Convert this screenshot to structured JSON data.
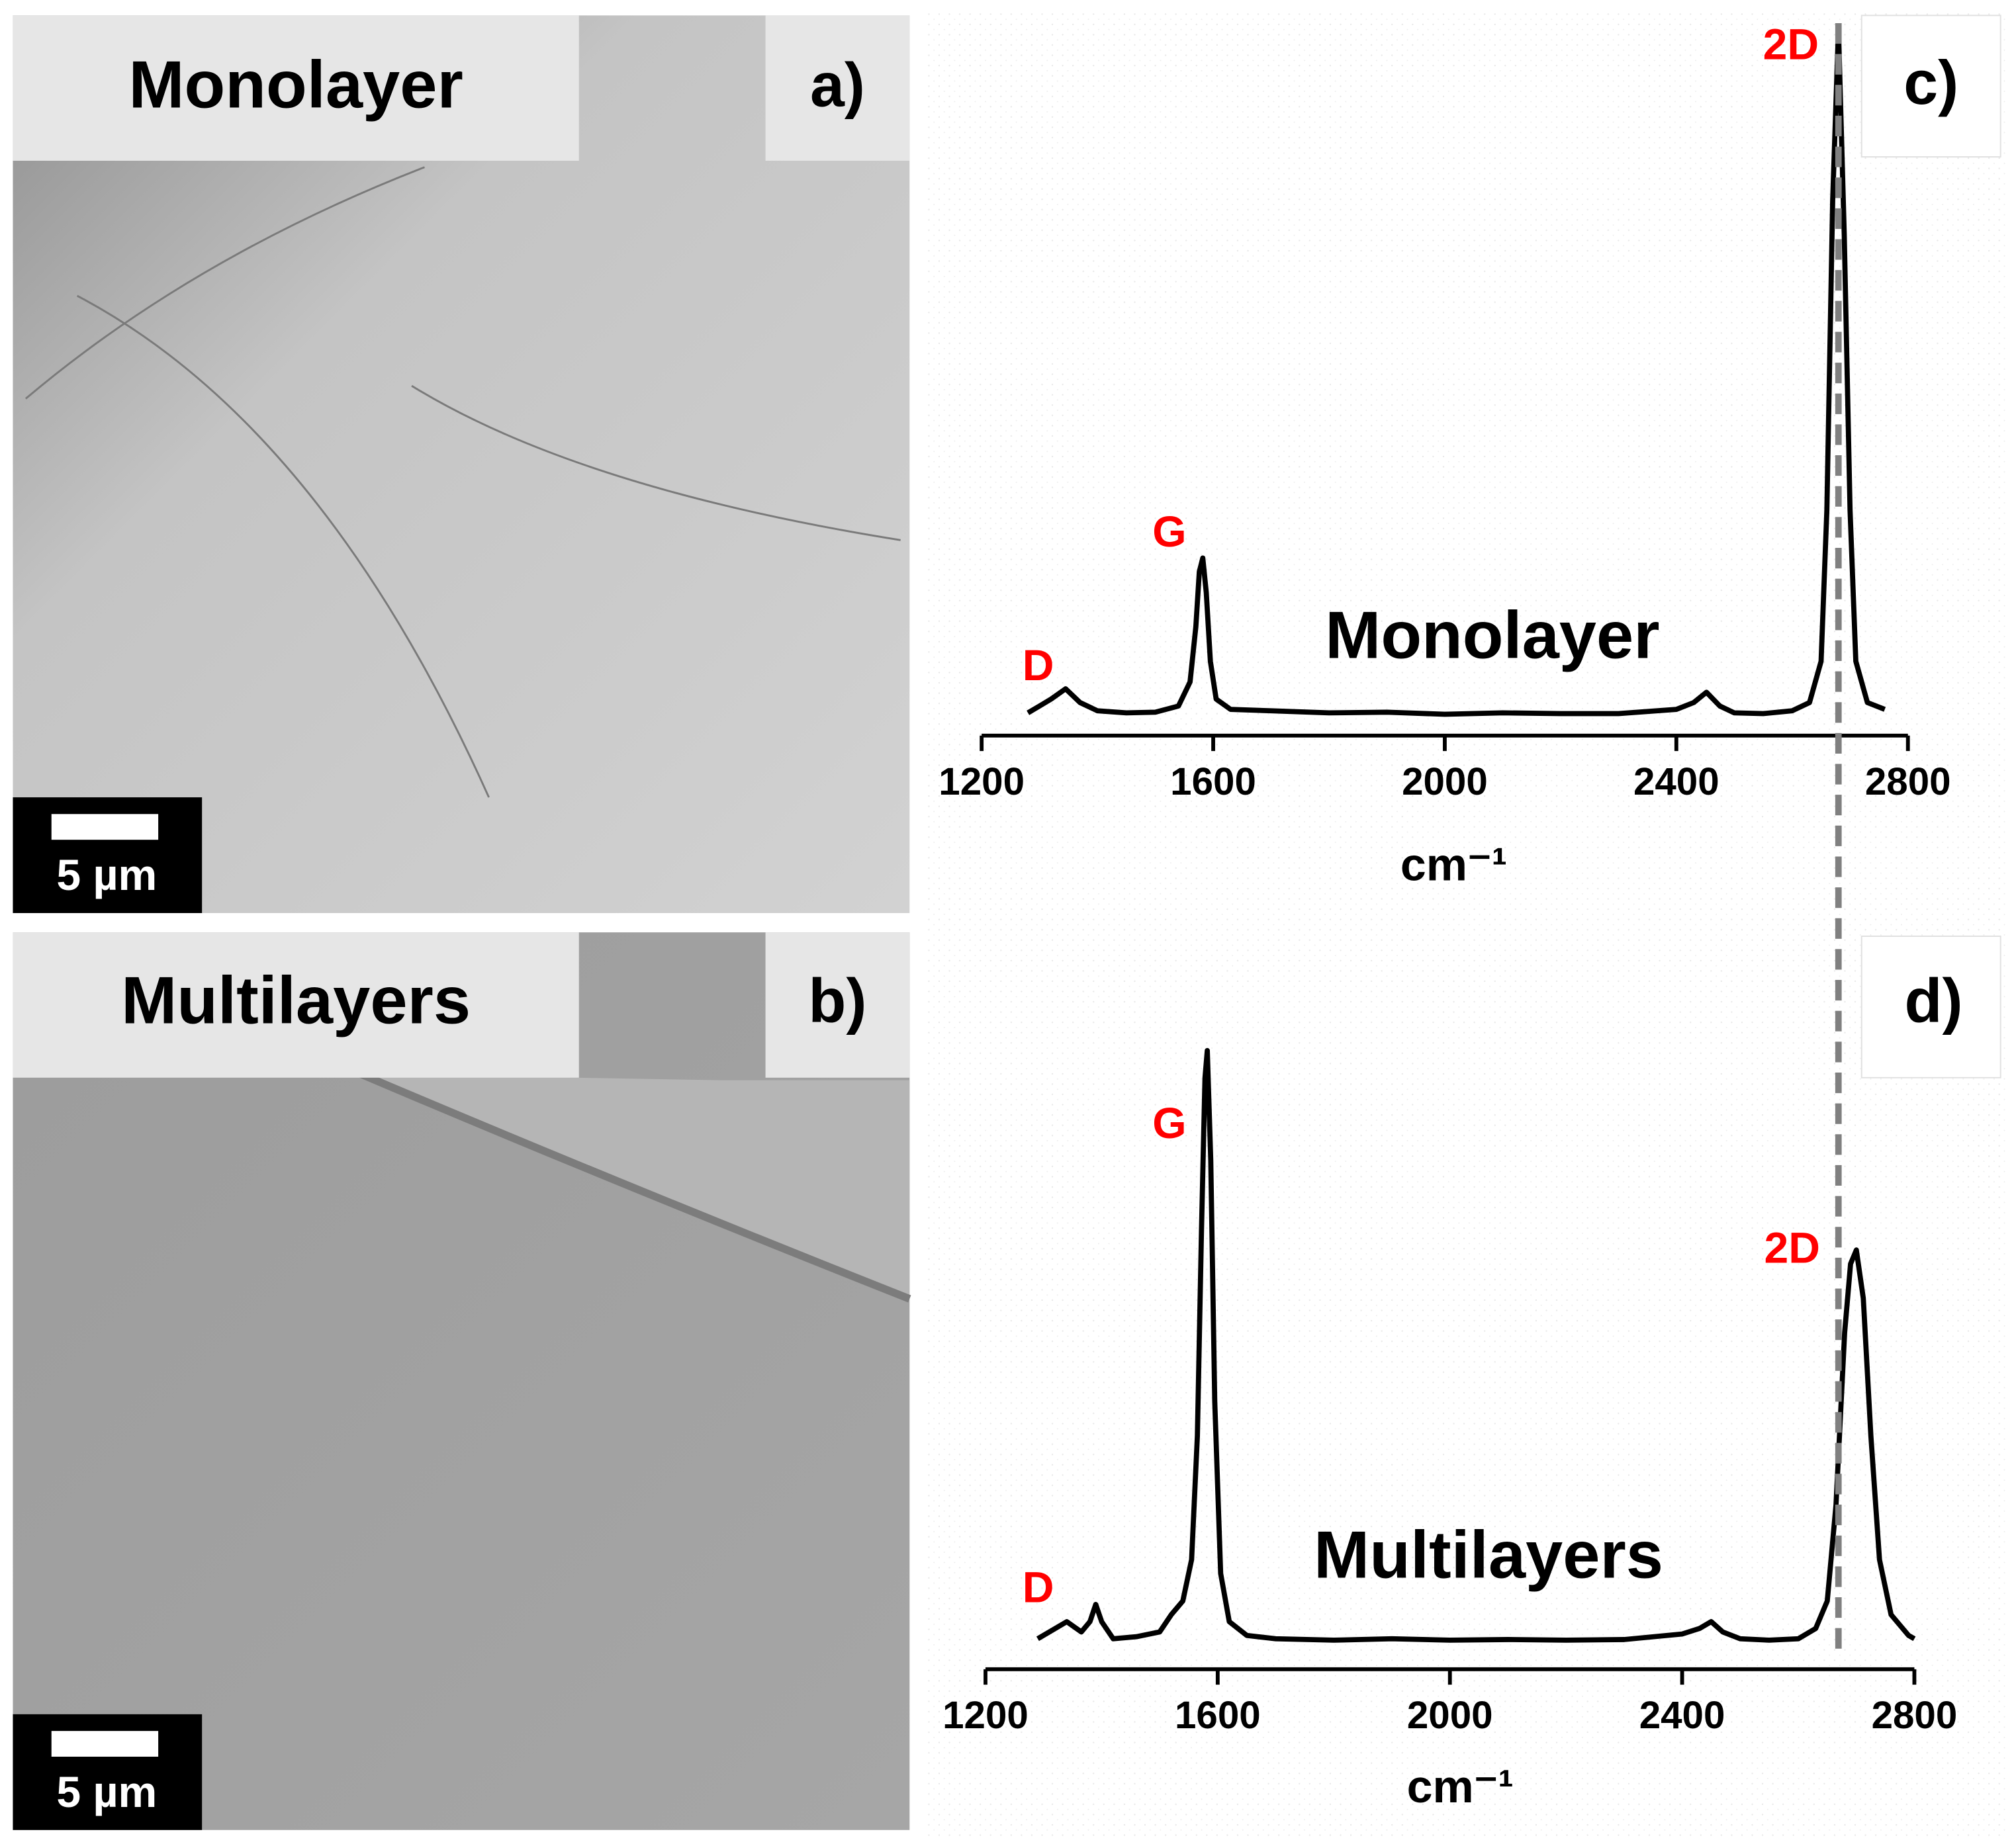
{
  "panels": [
    {
      "label": "a)",
      "title": "Monolayer",
      "scale_bar": "5 µm"
    },
    {
      "label": "b)",
      "title": "Multilayers",
      "scale_bar": "5 µm"
    }
  ],
  "reference_line": {
    "x": 2680,
    "color": "#808080"
  },
  "chart_data": [
    {
      "type": "line",
      "label": "c)",
      "annotation": "Monolayer",
      "x_label": "cm⁻¹",
      "peak_labels": [
        "D",
        "G",
        "2D"
      ],
      "xlim": [
        1200,
        2800
      ],
      "xticks": [
        1200,
        1600,
        2000,
        2400,
        2800
      ],
      "series": [
        {
          "color": "#000000",
          "x": [
            1280,
            1300,
            1320,
            1345,
            1370,
            1400,
            1450,
            1500,
            1540,
            1560,
            1570,
            1576,
            1582,
            1588,
            1595,
            1605,
            1630,
            1700,
            1800,
            1900,
            2000,
            2100,
            2200,
            2300,
            2400,
            2430,
            2452,
            2475,
            2500,
            2550,
            2600,
            2630,
            2650,
            2660,
            2670,
            2680,
            2690,
            2700,
            2710,
            2730,
            2760
          ],
          "values": [
            0.5,
            1.5,
            2.5,
            4,
            2,
            0.8,
            0.5,
            0.6,
            1.5,
            5,
            13,
            21,
            23,
            18,
            8,
            2.5,
            1,
            0.8,
            0.5,
            0.6,
            0.3,
            0.5,
            0.4,
            0.4,
            1,
            2,
            3.5,
            1.5,
            0.5,
            0.4,
            0.8,
            2,
            8,
            30,
            75,
            100,
            70,
            30,
            8,
            2,
            1
          ]
        }
      ]
    },
    {
      "type": "line",
      "label": "d)",
      "annotation": "Multilayers",
      "x_label": "cm⁻¹",
      "peak_labels": [
        "D",
        "G",
        "2D"
      ],
      "xlim": [
        1200,
        2800
      ],
      "xticks": [
        1200,
        1600,
        2000,
        2400,
        2800
      ],
      "series": [
        {
          "color": "#000000",
          "x": [
            1290,
            1310,
            1340,
            1365,
            1380,
            1390,
            1400,
            1420,
            1460,
            1500,
            1520,
            1540,
            1555,
            1565,
            1572,
            1578,
            1582,
            1588,
            1595,
            1605,
            1620,
            1650,
            1700,
            1800,
            1900,
            2000,
            2100,
            2200,
            2300,
            2400,
            2430,
            2450,
            2470,
            2500,
            2550,
            2600,
            2630,
            2650,
            2665,
            2680,
            2690,
            2700,
            2712,
            2725,
            2740,
            2760,
            2790,
            2800
          ],
          "values": [
            0.5,
            1.5,
            3,
            1.5,
            3,
            5.5,
            3,
            0.5,
            0.8,
            1.5,
            4,
            6,
            12,
            30,
            60,
            82,
            86,
            70,
            35,
            10,
            3,
            1,
            0.5,
            0.3,
            0.5,
            0.3,
            0.4,
            0.3,
            0.4,
            1.2,
            2,
            3,
            1.5,
            0.5,
            0.3,
            0.5,
            2,
            6,
            20,
            45,
            55,
            57,
            50,
            30,
            12,
            4,
            1,
            0.5
          ]
        }
      ]
    }
  ]
}
